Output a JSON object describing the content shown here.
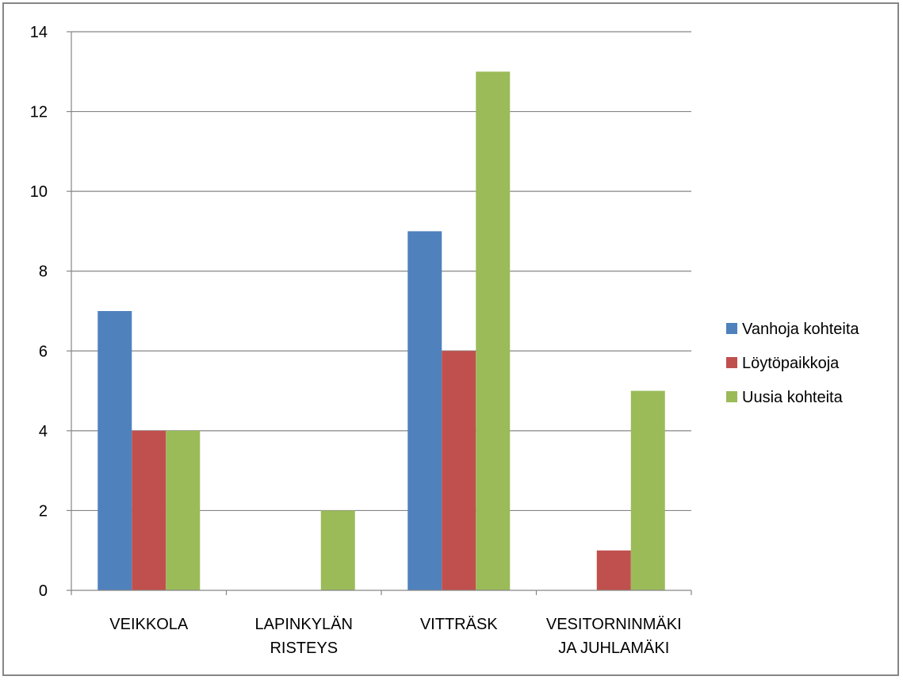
{
  "chart_data": {
    "type": "bar",
    "title": "",
    "xlabel": "",
    "ylabel": "",
    "categories": [
      [
        "VEIKKOLA"
      ],
      [
        "LAPINKYLÄN",
        "RISTEYS"
      ],
      [
        "VITTRÄSK"
      ],
      [
        "VESITORNINMÄKI",
        "JA JUHLAMÄKI"
      ]
    ],
    "series": [
      {
        "name": "Vanhoja kohteita",
        "color": "#4F81BD",
        "values": [
          7,
          0,
          9,
          0
        ]
      },
      {
        "name": "Löytöpaikkoja",
        "color": "#C0504D",
        "values": [
          4,
          0,
          6,
          1
        ]
      },
      {
        "name": "Uusia kohteita",
        "color": "#9BBB59",
        "values": [
          4,
          2,
          13,
          5
        ]
      }
    ],
    "ylim": [
      0,
      14
    ],
    "yticks": [
      0,
      2,
      4,
      6,
      8,
      10,
      12,
      14
    ],
    "grid": true,
    "legend_position": "right"
  }
}
